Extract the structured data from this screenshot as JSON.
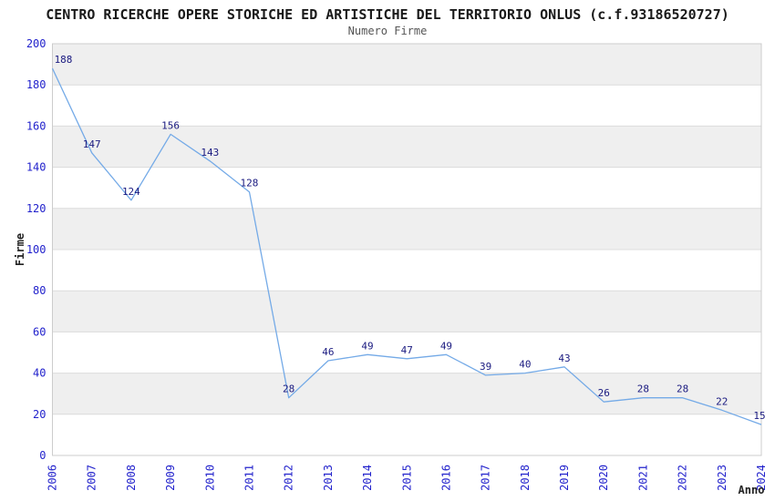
{
  "page": {
    "title": "CENTRO RICERCHE OPERE STORICHE ED ARTISTICHE DEL TERRITORIO ONLUS (c.f.93186520727)",
    "subtitle": "Numero Firme"
  },
  "chart_data": {
    "type": "line",
    "title": "CENTRO RICERCHE OPERE STORICHE ED ARTISTICHE DEL TERRITORIO ONLUS (c.f.93186520727)",
    "subtitle": "Numero Firme",
    "xlabel": "Anno",
    "ylabel": "Firme",
    "categories": [
      "2006",
      "2007",
      "2008",
      "2009",
      "2010",
      "2011",
      "2012",
      "2013",
      "2014",
      "2015",
      "2016",
      "2017",
      "2018",
      "2019",
      "2020",
      "2021",
      "2022",
      "2023",
      "2024"
    ],
    "series": [
      {
        "name": "Numero Firme",
        "values": [
          188,
          147,
          124,
          156,
          143,
          128,
          28,
          46,
          49,
          47,
          49,
          39,
          40,
          43,
          26,
          28,
          28,
          22,
          15
        ]
      }
    ],
    "ylim": [
      0,
      200
    ],
    "ytick_step": 20,
    "legend": "none",
    "grid": "horizontal-bands",
    "data_labels": true,
    "colors": {
      "line": "#74AAE7",
      "tick_label": "#2222CC",
      "data_label": "#1A1A80",
      "band_fill": "#EFEFEF",
      "grid_line": "#DCDCDC",
      "plot_border": "#CCCCCC",
      "title": "#1A1A1A",
      "subtitle": "#555555",
      "axis_title": "#222222",
      "background": "#FFFFFF"
    }
  }
}
